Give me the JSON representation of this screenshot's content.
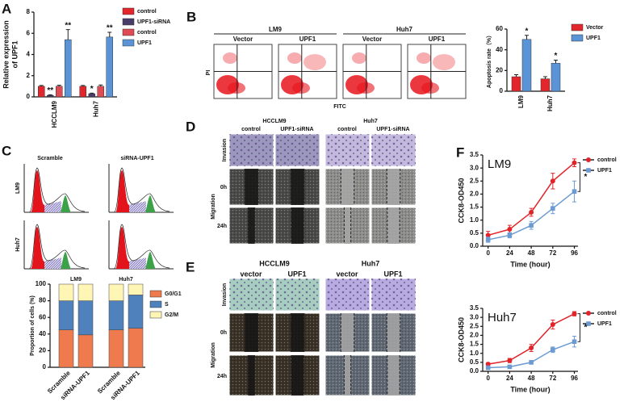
{
  "panels": [
    "A",
    "B",
    "C",
    "D",
    "E",
    "F"
  ],
  "flow": {
    "groups": [
      "LM9",
      "Huh7"
    ],
    "columns": [
      "Vector",
      "UPF1",
      "Vector",
      "UPF1"
    ],
    "y_label": "PI",
    "x_label": "FITC"
  },
  "cell_cycle": {
    "columns": [
      "Scramble",
      "siRNA-UPF1"
    ],
    "rows": [
      "LM9",
      "Huh7"
    ]
  },
  "panel_d": {
    "groups": [
      "HCCLM9",
      "Huh7"
    ],
    "columns": [
      "control",
      "UPF1-siRNA",
      "control",
      "UPF1-siRNA"
    ],
    "rows": [
      "Invasion",
      "Migration"
    ],
    "times": [
      "0h",
      "24h"
    ]
  },
  "panel_e": {
    "groups": [
      "HCCLM9",
      "Huh7"
    ],
    "columns": [
      "vector",
      "UPF1",
      "vector",
      "UPF1"
    ],
    "rows": [
      "Invasion",
      "Migration"
    ],
    "times": [
      "0h",
      "24h"
    ]
  },
  "chart_data": [
    {
      "type": "bar",
      "y_label": [
        "Relative expression",
        "of UPF1"
      ],
      "categories": [
        "HCCLM9",
        "Huh7"
      ],
      "series": [
        {
          "name": "control",
          "color": "#e3262b",
          "values": [
            1.0,
            1.0
          ],
          "errors": [
            0.08,
            0.08
          ]
        },
        {
          "name": "UPF1-siRNA",
          "color": "#4a3c6a",
          "values": [
            0.15,
            0.3
          ],
          "errors": [
            0.04,
            0.05
          ],
          "annotations": [
            "**",
            "*"
          ]
        },
        {
          "name": "control",
          "color": "#e04a55",
          "values": [
            1.0,
            1.0
          ],
          "errors": [
            0.1,
            0.12
          ]
        },
        {
          "name": "UPF1",
          "color": "#5b94d6",
          "values": [
            5.4,
            5.65
          ],
          "errors": [
            0.95,
            0.45
          ],
          "annotations": [
            "**",
            "**"
          ]
        }
      ],
      "ylim": [
        0,
        8
      ],
      "yticks": [
        0,
        2,
        4,
        6,
        8
      ]
    },
    {
      "type": "bar",
      "y_label": "Apoptosis rate（%）",
      "categories": [
        "LM9",
        "Huh7"
      ],
      "series": [
        {
          "name": "Vector",
          "color": "#e3262b",
          "values": [
            14,
            12
          ],
          "errors": [
            2,
            2
          ]
        },
        {
          "name": "UPF1",
          "color": "#5b94d6",
          "values": [
            50,
            27
          ],
          "errors": [
            4,
            3
          ],
          "annotations": [
            "*",
            "*"
          ]
        }
      ],
      "ylim": [
        0,
        60
      ],
      "yticks": [
        0,
        20,
        40,
        60
      ]
    },
    {
      "type": "stacked_bar",
      "y_label": "Proportion of cells (%)",
      "groups": [
        "LM9",
        "Huh7"
      ],
      "categories": [
        "Scramble",
        "siRNA-UPF1",
        "Scramble",
        "siRNA-UPF1"
      ],
      "series": [
        {
          "name": "G0/G1",
          "color": "#ee7a4d",
          "values": [
            45,
            39,
            45,
            47
          ]
        },
        {
          "name": "S",
          "color": "#4f81bd",
          "values": [
            35,
            41,
            35,
            40
          ]
        },
        {
          "name": "G2/M",
          "color": "#fff5b5",
          "values": [
            20,
            20,
            20,
            13
          ]
        }
      ],
      "ylim": [
        0,
        100
      ],
      "yticks": [
        0,
        20,
        40,
        60,
        80,
        100
      ]
    },
    {
      "type": "line",
      "title": "LM9",
      "x_label": "Time (hour)",
      "y_label": "CCK8-OD450",
      "x": [
        0,
        24,
        48,
        72,
        96
      ],
      "series": [
        {
          "name": "control",
          "color": "#e0242a",
          "marker": "circle",
          "values": [
            0.42,
            0.65,
            1.3,
            2.5,
            3.2
          ],
          "errors": [
            0.15,
            0.15,
            0.15,
            0.3,
            0.15
          ]
        },
        {
          "name": "UPF1",
          "color": "#6c9bd2",
          "marker": "square",
          "values": [
            0.25,
            0.42,
            0.8,
            1.45,
            2.1
          ],
          "errors": [
            0.1,
            0.1,
            0.15,
            0.2,
            0.4
          ]
        }
      ],
      "annotation": "*",
      "xlim": [
        -6,
        100
      ],
      "xticks": [
        0,
        24,
        48,
        72,
        96
      ],
      "ylim": [
        0,
        3.5
      ],
      "yticks": [
        {
          "value": 0,
          "label": "0.0"
        },
        0.5,
        {
          "value": 1,
          "label": "1.0"
        },
        1.5,
        {
          "value": 2,
          "label": "2.0"
        },
        2.5,
        {
          "value": 3,
          "label": "3.0"
        },
        3.5
      ]
    },
    {
      "type": "line",
      "title": "Huh7",
      "x_label": "Time (hour)",
      "y_label": "CCK8-OD450",
      "x": [
        0,
        24,
        48,
        72,
        96
      ],
      "series": [
        {
          "name": "control",
          "color": "#e0242a",
          "marker": "circle",
          "values": [
            0.4,
            0.6,
            1.3,
            2.6,
            3.2
          ],
          "errors": [
            0.08,
            0.12,
            0.2,
            0.25,
            0.12
          ]
        },
        {
          "name": "UPF1",
          "color": "#6c9bd2",
          "marker": "square",
          "values": [
            0.2,
            0.25,
            0.5,
            1.2,
            1.65
          ],
          "errors": [
            0.05,
            0.08,
            0.1,
            0.15,
            0.3
          ]
        }
      ],
      "annotation": "*",
      "xlim": [
        -6,
        100
      ],
      "xticks": [
        0,
        24,
        48,
        72,
        96
      ],
      "ylim": [
        0,
        3.5
      ],
      "yticks": [
        {
          "value": 0,
          "label": "0.0"
        },
        0.5,
        {
          "value": 1,
          "label": "1.0"
        },
        1.5,
        {
          "value": 2,
          "label": "2.0"
        },
        2.5,
        {
          "value": 3,
          "label": "3.0"
        },
        3.5
      ]
    }
  ]
}
